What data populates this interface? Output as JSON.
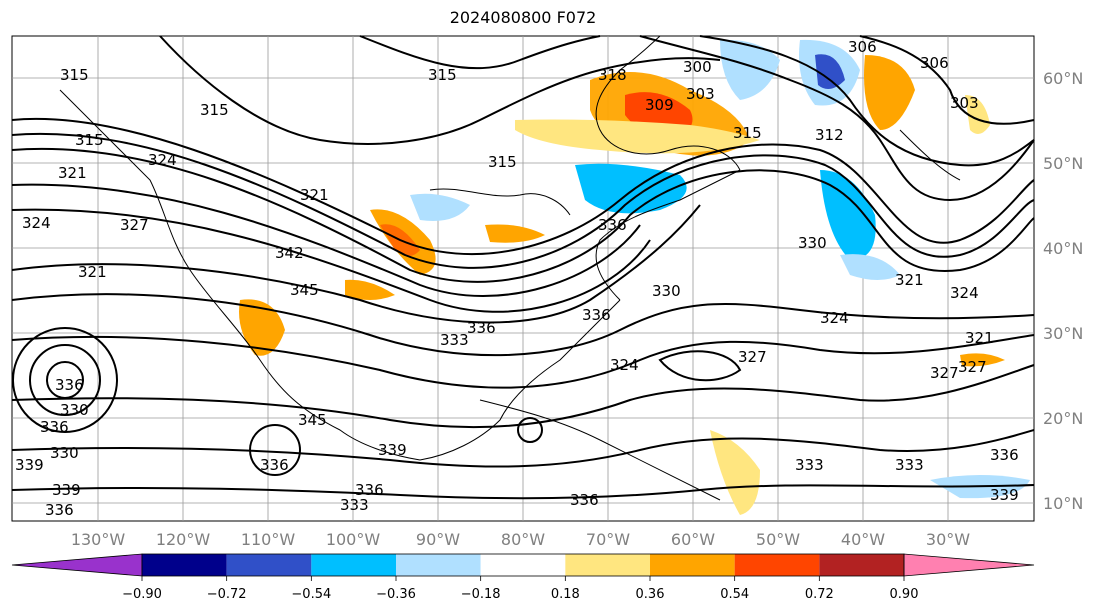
{
  "title": "2024080800 F072",
  "map": {
    "lon_labels": [
      "130°W",
      "120°W",
      "110°W",
      "100°W",
      "90°W",
      "80°W",
      "70°W",
      "60°W",
      "50°W",
      "40°W",
      "30°W"
    ],
    "lat_labels": [
      "60°N",
      "50°N",
      "40°N",
      "30°N",
      "20°N",
      "10°N"
    ],
    "contour_labels": [
      "315",
      "315",
      "315",
      "318",
      "300",
      "303",
      "306",
      "306",
      "303",
      "309",
      "315",
      "312",
      "315",
      "315",
      "321",
      "321",
      "324",
      "324",
      "327",
      "321",
      "342",
      "345",
      "336",
      "336",
      "333",
      "330",
      "330",
      "324",
      "327",
      "321",
      "324",
      "324",
      "327",
      "327",
      "321",
      "336",
      "336",
      "333",
      "333",
      "336",
      "336",
      "339",
      "339",
      "330",
      "333",
      "336",
      "345",
      "339",
      "336",
      "339",
      "330",
      "336",
      "336"
    ]
  },
  "colorbar": {
    "ticks": [
      "−0.90",
      "−0.72",
      "−0.54",
      "−0.36",
      "−0.18",
      "0.18",
      "0.36",
      "0.54",
      "0.72",
      "0.90"
    ],
    "colors": [
      "#9932cc",
      "#00008b",
      "#3050c8",
      "#00bfff",
      "#b0e0ff",
      "#ffffff",
      "#ffe680",
      "#ffa500",
      "#ff4500",
      "#b22222",
      "#ff80b0"
    ]
  }
}
